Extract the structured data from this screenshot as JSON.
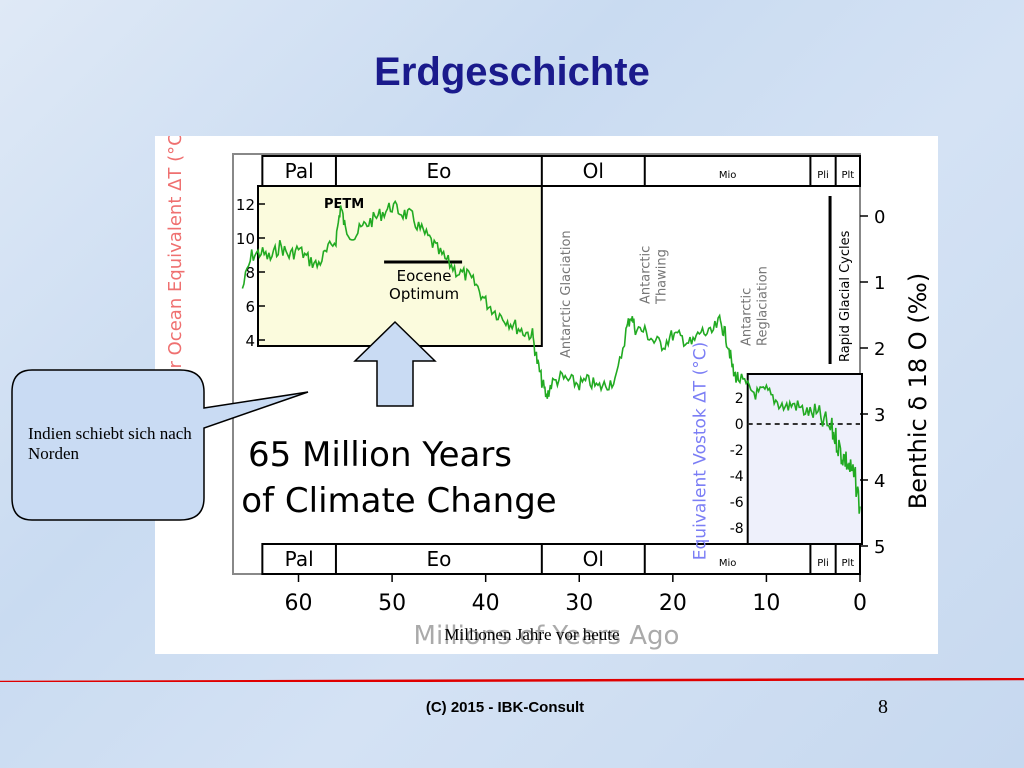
{
  "slide": {
    "title": "Erdgeschichte",
    "callout_text": "Indien schiebt sich nach Norden",
    "caption": "Millionen Jahre vor heute",
    "footer": "(C) 2015 - IBK-Consult",
    "page_number": "8",
    "rule_color": "#e00000",
    "title_color": "#1a1a8c"
  },
  "chart_data": {
    "type": "line",
    "title": "65 Million Years of Climate Change",
    "xlabel": "Millions of Years Ago",
    "xlim": [
      67,
      0
    ],
    "x_ticks": [
      60,
      50,
      40,
      30,
      20,
      10,
      0
    ],
    "epochs": [
      "Pal",
      "Eo",
      "Ol",
      "Mio",
      "Pli",
      "Plt"
    ],
    "ylabel_right": "Benthic δ 18 O (‰)",
    "ylim_right": [
      5,
      -0.5
    ],
    "y_ticks_right": [
      0,
      1,
      2,
      3,
      4,
      5
    ],
    "ylabel_left": "Polar Ocean Equivalent ΔT (°C)",
    "y_ticks_left": [
      12,
      10,
      8,
      6,
      4
    ],
    "ylabel_vostok": "Equivalent Vostok ΔT (°C)",
    "y_ticks_vostok": [
      2,
      0,
      -2,
      -4,
      -6,
      -8
    ],
    "annotations": [
      "PETM",
      "Eocene Optimum",
      "Antarctic Glaciation",
      "Antarctic Thawing",
      "Antarctic Reglaciation",
      "Rapid Glacial Cycles"
    ],
    "series": [
      {
        "color": "#22aa22",
        "x": [
          66,
          65,
          64,
          63,
          62,
          61,
          60,
          59,
          58,
          57,
          56,
          55.5,
          55,
          54,
          53,
          52,
          51,
          50,
          49,
          48,
          47,
          46,
          45,
          44,
          43,
          42,
          41,
          40,
          39,
          38,
          37,
          36,
          35,
          34.5,
          34,
          33.5,
          33,
          32,
          31,
          30,
          29,
          28,
          27,
          26,
          25,
          24.5,
          24,
          23,
          22,
          21,
          20,
          19,
          18,
          17,
          16,
          15,
          14.5,
          14,
          13.5,
          13,
          12,
          11,
          10,
          9,
          8,
          7,
          6,
          5,
          4,
          3,
          2.5,
          2,
          1.5,
          1,
          0.5,
          0
        ],
        "values": [
          1.1,
          0.6,
          0.55,
          0.65,
          0.45,
          0.6,
          0.5,
          0.65,
          0.75,
          0.55,
          0.35,
          -0.15,
          0.2,
          0.3,
          0.15,
          0.05,
          -0.05,
          -0.15,
          -0.05,
          0.0,
          0.2,
          0.35,
          0.55,
          0.7,
          0.85,
          0.9,
          1.05,
          1.3,
          1.45,
          1.55,
          1.65,
          1.75,
          1.8,
          2.2,
          2.5,
          2.75,
          2.55,
          2.45,
          2.5,
          2.55,
          2.5,
          2.6,
          2.55,
          2.45,
          1.75,
          1.5,
          1.7,
          1.75,
          1.9,
          1.95,
          1.8,
          1.85,
          1.95,
          1.75,
          1.8,
          1.6,
          1.75,
          2.0,
          2.4,
          2.45,
          2.6,
          2.7,
          2.65,
          2.8,
          2.9,
          2.85,
          2.95,
          3.0,
          3.1,
          3.25,
          3.4,
          3.6,
          3.7,
          3.85,
          4.0,
          4.4
        ]
      }
    ]
  }
}
